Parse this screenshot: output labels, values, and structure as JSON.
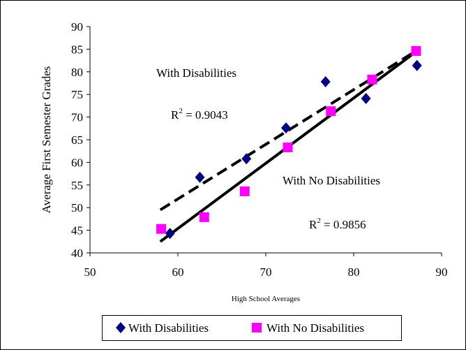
{
  "chart_data": {
    "type": "scatter",
    "title": "",
    "xlabel": "High School Averages",
    "ylabel": "Average First Semester Grades",
    "xlim": [
      50,
      90
    ],
    "ylim": [
      40,
      90
    ],
    "x_ticks": [
      "50",
      "60",
      "70",
      "80",
      "90"
    ],
    "y_ticks": [
      "40",
      "45",
      "50",
      "55",
      "60",
      "65",
      "70",
      "75",
      "80",
      "85",
      "90"
    ],
    "grid": false,
    "legend_position": "bottom-center",
    "series": [
      {
        "name": "With Disabilities",
        "marker": "diamond",
        "color": "#000080",
        "points": [
          [
            59.1,
            44.3
          ],
          [
            62.5,
            56.7
          ],
          [
            67.8,
            60.8
          ],
          [
            72.3,
            67.6
          ],
          [
            76.8,
            77.8
          ],
          [
            81.4,
            74.1
          ],
          [
            87.2,
            81.4
          ]
        ],
        "trendline": {
          "style": "dashed",
          "color": "#000000",
          "from": [
            58.0,
            49.5
          ],
          "to": [
            87.0,
            84.5
          ]
        }
      },
      {
        "name": "With No Disabilities",
        "marker": "square",
        "color": "#ff00ff",
        "points": [
          [
            58.1,
            45.3
          ],
          [
            63.0,
            47.9
          ],
          [
            67.6,
            53.6
          ],
          [
            72.5,
            63.3
          ],
          [
            77.4,
            71.3
          ],
          [
            82.1,
            78.3
          ],
          [
            87.1,
            84.6
          ]
        ],
        "trendline": {
          "style": "solid",
          "color": "#000000",
          "from": [
            58.0,
            42.5
          ],
          "to": [
            87.0,
            84.3
          ]
        }
      }
    ],
    "annotations": {
      "disabilities_label": "With Disabilities",
      "disabilities_r2_prefix": "R",
      "disabilities_r2_sup": "2",
      "disabilities_r2_value": " = 0.9043",
      "no_disabilities_label": "With No Disabilities",
      "no_disabilities_r2_prefix": "R",
      "no_disabilities_r2_sup": "2",
      "no_disabilities_r2_value": " = 0.9856"
    }
  }
}
